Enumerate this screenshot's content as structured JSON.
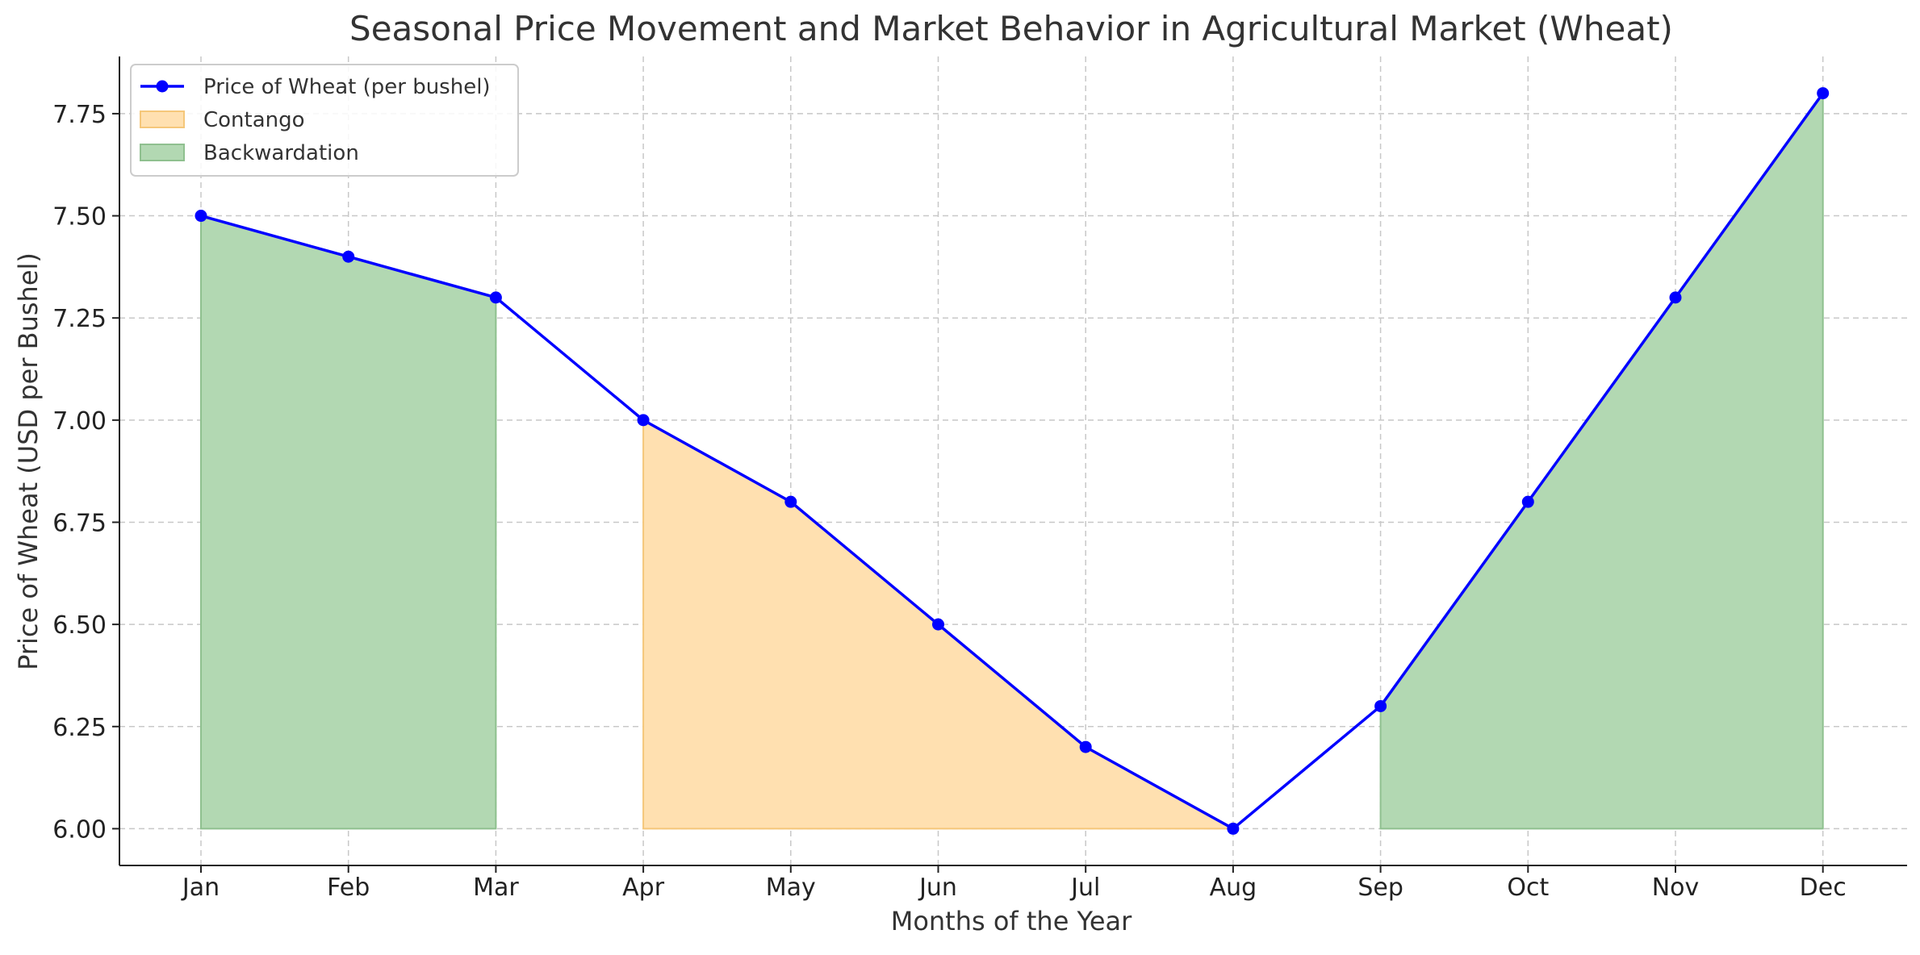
{
  "chart_data": {
    "type": "line",
    "title": "Seasonal Price Movement and Market Behavior in Agricultural Market (Wheat)",
    "xlabel": "Months of the Year",
    "ylabel": "Price of Wheat (USD per Bushel)",
    "categories": [
      "Jan",
      "Feb",
      "Mar",
      "Apr",
      "May",
      "Jun",
      "Jul",
      "Aug",
      "Sep",
      "Oct",
      "Nov",
      "Dec"
    ],
    "series": [
      {
        "name": "Price of Wheat (per bushel)",
        "values": [
          7.5,
          7.4,
          7.3,
          7.0,
          6.8,
          6.5,
          6.2,
          6.0,
          6.3,
          6.8,
          7.3,
          7.8
        ],
        "color": "#0000ff",
        "marker": "circle"
      }
    ],
    "shaded_regions": [
      {
        "name": "Contango",
        "from_index": 3,
        "to_index": 7,
        "baseline": 6.0,
        "color": "#ffe0b0",
        "edge_color": "#f5c77a"
      },
      {
        "name": "Backwardation",
        "from_index": 0,
        "to_index": 2,
        "baseline": 6.0,
        "color": "#b2d8b2",
        "edge_color": "#8fc08f"
      },
      {
        "name": "Backwardation",
        "from_index": 8,
        "to_index": 11,
        "baseline": 6.0,
        "color": "#b2d8b2",
        "edge_color": "#8fc08f"
      }
    ],
    "legend": {
      "placement": "top-left",
      "entries": [
        {
          "label": "Price of Wheat (per bushel)",
          "kind": "line",
          "color": "#0000ff"
        },
        {
          "label": "Contango",
          "kind": "patch",
          "color": "#ffe0b0",
          "edge_color": "#f5c77a"
        },
        {
          "label": "Backwardation",
          "kind": "patch",
          "color": "#b2d8b2",
          "edge_color": "#8fc08f"
        }
      ]
    },
    "ylim": [
      5.91,
      7.89
    ],
    "yticks": [
      "6.00",
      "6.25",
      "6.50",
      "6.75",
      "7.00",
      "7.25",
      "7.50",
      "7.75"
    ],
    "ytick_values": [
      6.0,
      6.25,
      6.5,
      6.75,
      7.0,
      7.25,
      7.5,
      7.75
    ],
    "grid": true
  }
}
